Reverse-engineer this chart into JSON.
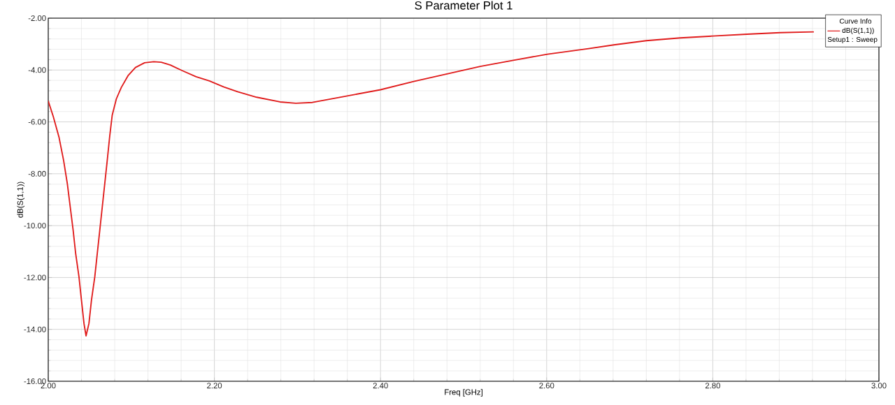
{
  "chart_data": {
    "type": "line",
    "title": "S Parameter Plot 1",
    "xlabel": "Freq [GHz]",
    "ylabel": "dB(S(1,1))",
    "legend_title": "Curve Info",
    "annotations": [
      "Setup1 : Sweep"
    ],
    "x": [
      2.0,
      2.006,
      2.013,
      2.0185,
      2.023,
      2.0265,
      2.03,
      2.033,
      2.037,
      2.04,
      2.043,
      2.0455,
      2.049,
      2.052,
      2.056,
      2.059,
      2.062,
      2.065,
      2.068,
      2.071,
      2.074,
      2.077,
      2.082,
      2.088,
      2.096,
      2.105,
      2.116,
      2.127,
      2.136,
      2.147,
      2.161,
      2.178,
      2.194,
      2.211,
      2.228,
      2.251,
      2.279,
      2.298,
      2.318,
      2.36,
      2.4,
      2.44,
      2.48,
      2.52,
      2.561,
      2.601,
      2.649,
      2.681,
      2.72,
      2.761,
      2.8,
      2.841,
      2.881,
      2.921
    ],
    "series": [
      {
        "name": "dB(S(1,1))",
        "color": "#e01b1b",
        "values": [
          -5.2,
          -5.79,
          -6.6,
          -7.49,
          -8.39,
          -9.29,
          -10.19,
          -11.08,
          -11.98,
          -12.88,
          -13.77,
          -14.25,
          -13.77,
          -12.88,
          -11.98,
          -11.08,
          -10.19,
          -9.29,
          -8.39,
          -7.49,
          -6.55,
          -5.74,
          -5.11,
          -4.67,
          -4.22,
          -3.9,
          -3.72,
          -3.68,
          -3.7,
          -3.81,
          -4.02,
          -4.26,
          -4.42,
          -4.65,
          -4.84,
          -5.05,
          -5.23,
          -5.28,
          -5.25,
          -5.0,
          -4.76,
          -4.44,
          -4.15,
          -3.86,
          -3.62,
          -3.39,
          -3.18,
          -3.03,
          -2.87,
          -2.76,
          -2.69,
          -2.62,
          -2.56,
          -2.53
        ]
      }
    ],
    "xlim": [
      2,
      3
    ],
    "ylim": [
      -16,
      -2
    ],
    "xticks": [
      {
        "value": 2,
        "label": "2.00"
      },
      {
        "value": 2.2,
        "label": "2.20"
      },
      {
        "value": 2.4,
        "label": "2.40"
      },
      {
        "value": 2.6,
        "label": "2.60"
      },
      {
        "value": 2.8,
        "label": "2.80"
      },
      {
        "value": 3,
        "label": "3.00"
      }
    ],
    "yticks": [
      {
        "value": -16,
        "label": "-16.00"
      },
      {
        "value": -14,
        "label": "-14.00"
      },
      {
        "value": -12,
        "label": "-12.00"
      },
      {
        "value": -10,
        "label": "-10.00"
      },
      {
        "value": -8,
        "label": "-8.00"
      },
      {
        "value": -6,
        "label": "-6.00"
      },
      {
        "value": -4,
        "label": "-4.00"
      },
      {
        "value": -2,
        "label": "-2.00"
      }
    ],
    "grid": true,
    "legend": "top right",
    "marker": "none",
    "line_style": "solid"
  }
}
